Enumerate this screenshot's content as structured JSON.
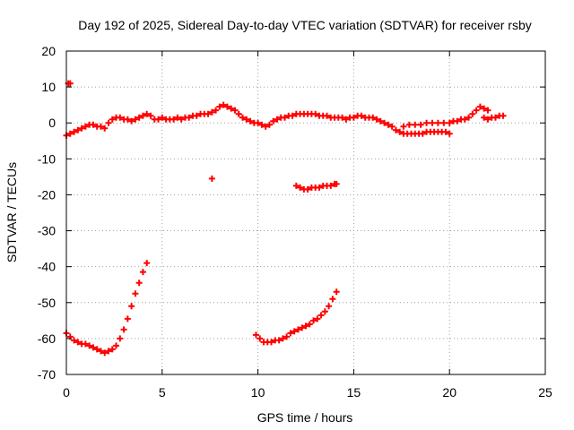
{
  "chart_data": {
    "type": "scatter",
    "title": "Day 192 of 2025, Sidereal Day-to-day VTEC variation (SDTVAR) for receiver rsby",
    "xlabel": "GPS time / hours",
    "ylabel": "SDTVAR / TECUs",
    "xlim": [
      0,
      25
    ],
    "ylim": [
      -70,
      20
    ],
    "xticks": [
      0,
      5,
      10,
      15,
      20,
      25
    ],
    "yticks": [
      20,
      10,
      0,
      -10,
      -20,
      -30,
      -40,
      -50,
      -60,
      -70
    ],
    "grid": true,
    "marker": "+",
    "color": "#ff0000",
    "series": [
      {
        "name": "near-zero band",
        "points": [
          [
            0.0,
            -3.5
          ],
          [
            0.2,
            -3.0
          ],
          [
            0.4,
            -2.5
          ],
          [
            0.6,
            -2.0
          ],
          [
            0.8,
            -1.5
          ],
          [
            1.0,
            -1.0
          ],
          [
            1.2,
            -0.5
          ],
          [
            1.4,
            -0.5
          ],
          [
            1.6,
            -1.0
          ],
          [
            1.8,
            -1.0
          ],
          [
            2.0,
            -1.5
          ],
          [
            2.2,
            0.0
          ],
          [
            2.4,
            1.0
          ],
          [
            2.6,
            1.5
          ],
          [
            2.8,
            1.5
          ],
          [
            3.0,
            1.0
          ],
          [
            3.2,
            1.0
          ],
          [
            3.4,
            0.5
          ],
          [
            3.6,
            1.0
          ],
          [
            3.8,
            1.5
          ],
          [
            4.0,
            2.0
          ],
          [
            4.2,
            2.5
          ],
          [
            4.4,
            2.0
          ],
          [
            4.6,
            1.0
          ],
          [
            4.8,
            1.0
          ],
          [
            5.0,
            1.5
          ],
          [
            5.2,
            1.0
          ],
          [
            5.4,
            1.0
          ],
          [
            5.6,
            1.0
          ],
          [
            5.8,
            1.5
          ],
          [
            6.0,
            1.0
          ],
          [
            6.2,
            1.5
          ],
          [
            6.4,
            1.5
          ],
          [
            6.6,
            2.0
          ],
          [
            6.8,
            2.0
          ],
          [
            7.0,
            2.5
          ],
          [
            7.2,
            2.5
          ],
          [
            7.4,
            2.5
          ],
          [
            7.6,
            3.0
          ],
          [
            7.8,
            3.5
          ],
          [
            8.0,
            4.5
          ],
          [
            8.2,
            5.0
          ],
          [
            8.4,
            4.5
          ],
          [
            8.6,
            4.0
          ],
          [
            8.8,
            3.5
          ],
          [
            9.0,
            2.5
          ],
          [
            9.2,
            1.5
          ],
          [
            9.4,
            1.0
          ],
          [
            9.6,
            0.5
          ],
          [
            9.8,
            0.0
          ],
          [
            10.0,
            0.0
          ],
          [
            10.2,
            -0.5
          ],
          [
            10.4,
            -1.0
          ],
          [
            10.6,
            -0.5
          ],
          [
            10.8,
            0.5
          ],
          [
            11.0,
            1.0
          ],
          [
            11.2,
            1.5
          ],
          [
            11.4,
            1.5
          ],
          [
            11.6,
            2.0
          ],
          [
            11.8,
            2.0
          ],
          [
            12.0,
            2.5
          ],
          [
            12.2,
            2.5
          ],
          [
            12.4,
            2.5
          ],
          [
            12.6,
            2.5
          ],
          [
            12.8,
            2.5
          ],
          [
            13.0,
            2.5
          ],
          [
            13.2,
            2.0
          ],
          [
            13.4,
            2.0
          ],
          [
            13.6,
            2.0
          ],
          [
            13.8,
            1.5
          ],
          [
            14.0,
            1.5
          ],
          [
            14.2,
            1.5
          ],
          [
            14.4,
            1.5
          ],
          [
            14.6,
            1.0
          ],
          [
            14.8,
            1.5
          ],
          [
            15.0,
            1.5
          ],
          [
            15.2,
            2.0
          ],
          [
            15.4,
            2.0
          ],
          [
            15.6,
            1.5
          ],
          [
            15.8,
            1.5
          ],
          [
            16.0,
            1.5
          ],
          [
            16.2,
            1.0
          ],
          [
            16.4,
            0.5
          ],
          [
            16.6,
            0.0
          ],
          [
            16.8,
            -0.5
          ],
          [
            17.0,
            -1.0
          ],
          [
            17.2,
            -2.0
          ],
          [
            17.4,
            -2.5
          ],
          [
            17.6,
            -3.0
          ],
          [
            17.8,
            -3.0
          ],
          [
            18.0,
            -3.0
          ],
          [
            18.2,
            -3.0
          ],
          [
            18.4,
            -3.0
          ],
          [
            18.6,
            -3.0
          ],
          [
            18.8,
            -2.5
          ],
          [
            19.0,
            -2.5
          ],
          [
            19.2,
            -2.5
          ],
          [
            19.4,
            -2.5
          ],
          [
            19.6,
            -2.5
          ],
          [
            19.8,
            -2.5
          ],
          [
            20.0,
            -3.0
          ],
          [
            17.6,
            -1.0
          ],
          [
            17.9,
            -0.5
          ],
          [
            18.2,
            -0.5
          ],
          [
            18.5,
            -0.5
          ],
          [
            18.8,
            0.0
          ],
          [
            19.1,
            0.0
          ],
          [
            19.4,
            0.0
          ],
          [
            19.7,
            0.0
          ],
          [
            20.0,
            0.0
          ],
          [
            20.2,
            0.5
          ],
          [
            20.4,
            0.5
          ],
          [
            20.6,
            1.0
          ],
          [
            20.8,
            1.0
          ],
          [
            21.0,
            1.5
          ],
          [
            21.2,
            2.5
          ],
          [
            21.4,
            3.5
          ],
          [
            21.6,
            4.5
          ],
          [
            21.8,
            4.0
          ],
          [
            22.0,
            3.5
          ],
          [
            21.8,
            1.5
          ],
          [
            22.0,
            1.0
          ],
          [
            22.2,
            1.5
          ],
          [
            22.4,
            1.5
          ],
          [
            22.6,
            2.0
          ],
          [
            22.8,
            2.0
          ],
          [
            0.1,
            11.0
          ],
          [
            0.2,
            11.0
          ]
        ]
      },
      {
        "name": "isolated point",
        "points": [
          [
            7.6,
            -15.5
          ]
        ]
      },
      {
        "name": "segment near -18",
        "points": [
          [
            12.0,
            -17.5
          ],
          [
            12.2,
            -18.0
          ],
          [
            12.4,
            -18.5
          ],
          [
            12.6,
            -18.5
          ],
          [
            12.8,
            -18.0
          ],
          [
            13.0,
            -18.0
          ],
          [
            13.2,
            -18.0
          ],
          [
            13.4,
            -17.5
          ],
          [
            13.6,
            -17.5
          ],
          [
            13.8,
            -17.5
          ],
          [
            14.0,
            -17.0
          ],
          [
            14.1,
            -17.0
          ]
        ]
      },
      {
        "name": "arc from -58 to -39",
        "points": [
          [
            0.0,
            -58.5
          ],
          [
            0.2,
            -59.5
          ],
          [
            0.4,
            -60.5
          ],
          [
            0.6,
            -61.0
          ],
          [
            0.8,
            -61.5
          ],
          [
            1.0,
            -61.5
          ],
          [
            1.2,
            -62.0
          ],
          [
            1.4,
            -62.5
          ],
          [
            1.6,
            -63.0
          ],
          [
            1.8,
            -63.5
          ],
          [
            2.0,
            -64.0
          ],
          [
            2.2,
            -63.5
          ],
          [
            2.4,
            -63.0
          ],
          [
            2.6,
            -62.0
          ],
          [
            2.8,
            -60.0
          ],
          [
            3.0,
            -57.5
          ],
          [
            3.2,
            -54.5
          ],
          [
            3.4,
            -51.0
          ],
          [
            3.6,
            -47.5
          ],
          [
            3.8,
            -44.5
          ],
          [
            4.0,
            -41.5
          ],
          [
            4.2,
            -39.0
          ]
        ]
      },
      {
        "name": "arc from -59 to -47",
        "points": [
          [
            9.9,
            -59.0
          ],
          [
            10.1,
            -60.0
          ],
          [
            10.3,
            -61.0
          ],
          [
            10.5,
            -61.0
          ],
          [
            10.7,
            -61.0
          ],
          [
            10.9,
            -60.5
          ],
          [
            11.1,
            -60.5
          ],
          [
            11.3,
            -60.0
          ],
          [
            11.5,
            -59.5
          ],
          [
            11.7,
            -58.5
          ],
          [
            11.9,
            -58.0
          ],
          [
            12.1,
            -57.5
          ],
          [
            12.3,
            -57.0
          ],
          [
            12.5,
            -56.5
          ],
          [
            12.7,
            -56.0
          ],
          [
            12.9,
            -55.0
          ],
          [
            13.1,
            -54.5
          ],
          [
            13.3,
            -53.5
          ],
          [
            13.5,
            -52.5
          ],
          [
            13.7,
            -51.0
          ],
          [
            13.9,
            -49.0
          ],
          [
            14.1,
            -47.0
          ]
        ]
      }
    ]
  }
}
